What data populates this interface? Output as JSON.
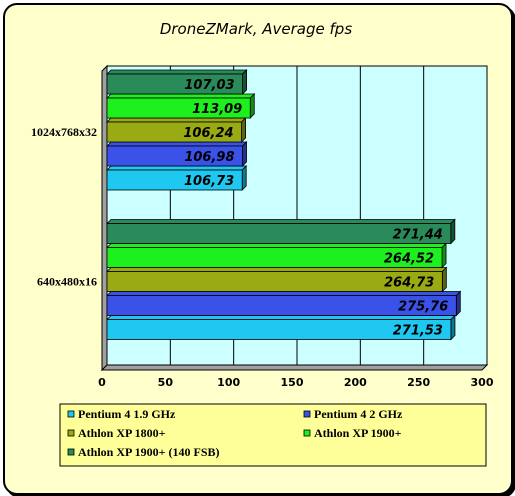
{
  "chart_data": {
    "type": "bar",
    "orientation": "horizontal",
    "title": "DroneZMark, Average fps",
    "categories": [
      "1024x768x32",
      "640x480x16"
    ],
    "series": [
      {
        "name": "Pentium 4 1.9 GHz",
        "color": "#1ec8f0",
        "values": [
          106.73,
          271.53
        ]
      },
      {
        "name": "Pentium 4 2 GHz",
        "color": "#3a52e8",
        "values": [
          106.98,
          275.76
        ]
      },
      {
        "name": "Athlon XP 1800+",
        "color": "#9aaa12",
        "values": [
          106.24,
          264.73
        ]
      },
      {
        "name": "Athlon XP 1900+",
        "color": "#1ef01e",
        "values": [
          113.09,
          264.52
        ]
      },
      {
        "name": "Athlon XP 1900+ (140 FSB)",
        "color": "#2a8a5a",
        "values": [
          107.03,
          271.44
        ]
      }
    ],
    "value_labels": [
      [
        "106,73",
        "106,98",
        "106,24",
        "113,09",
        "107,03"
      ],
      [
        "271,53",
        "275,76",
        "264,73",
        "264,52",
        "271,44"
      ]
    ],
    "xticks": [
      0,
      50,
      100,
      150,
      200,
      250,
      300
    ],
    "xlim": [
      0,
      300
    ],
    "grid": true,
    "plot_background": "#ccffff",
    "legend_position": "bottom"
  }
}
